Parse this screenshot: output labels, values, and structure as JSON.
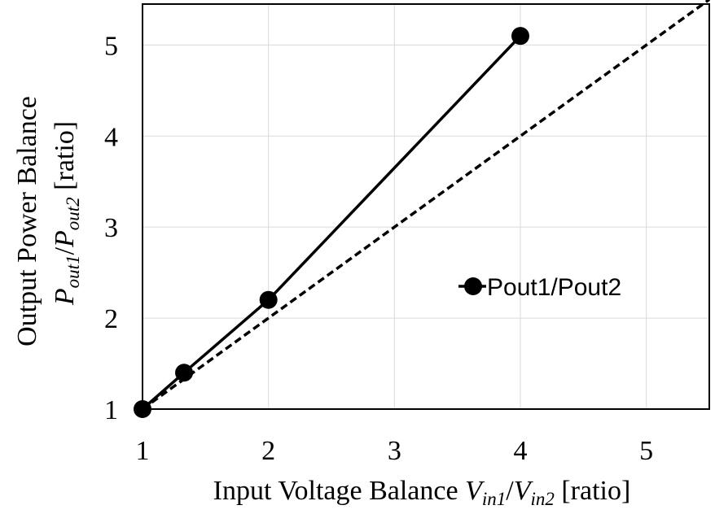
{
  "chart_data": {
    "type": "line",
    "x_axis": {
      "title_main": "Input Voltage Balance ",
      "title_sym1": "V",
      "title_sub1": "in1",
      "title_sep": "/",
      "title_sym2": "V",
      "title_sub2": "in2",
      "title_unit": " [ratio]",
      "range": [
        1,
        5.5
      ],
      "ticks": [
        1,
        2,
        3,
        4,
        5
      ],
      "tick_labels": [
        "1",
        "2",
        "3",
        "4",
        "5"
      ]
    },
    "y_axis": {
      "title_main": "Output Power Balance",
      "title_sym1": "P",
      "title_sub1": "out1",
      "title_sep": "/",
      "title_sym2": "P",
      "title_sub2": "out2",
      "title_unit": " [ratio]",
      "range": [
        1,
        5.45
      ],
      "ticks": [
        1,
        2,
        3,
        4,
        5
      ],
      "tick_labels": [
        "1",
        "2",
        "3",
        "4",
        "5"
      ]
    },
    "grid": true,
    "legend": {
      "position": "center-right"
    },
    "series": [
      {
        "name": "Pout1/Pout2",
        "style": "solid",
        "marker": "circle",
        "color": "#000000",
        "x": [
          1,
          1.33,
          2,
          4
        ],
        "y": [
          1,
          1.4,
          2.2,
          5.1
        ]
      },
      {
        "style": "dashed",
        "marker": "none",
        "color": "#000000",
        "x": [
          1,
          5.5
        ],
        "y": [
          1,
          5.5
        ]
      }
    ]
  }
}
